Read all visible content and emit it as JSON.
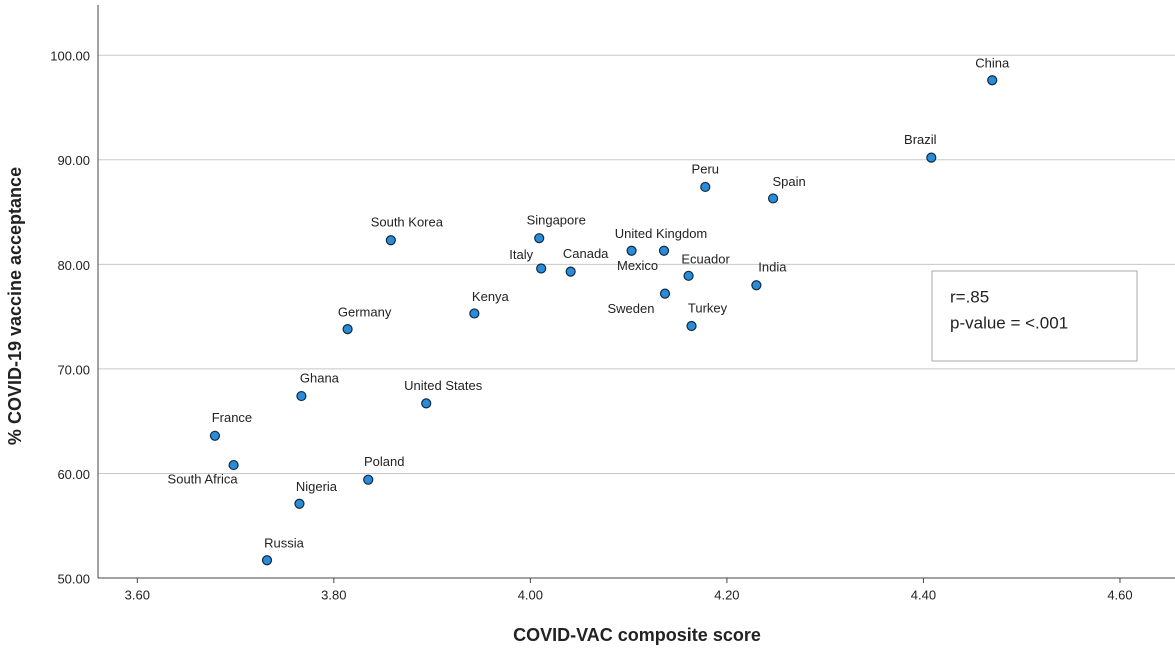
{
  "chart_data": {
    "type": "scatter",
    "x_label": "COVID-VAC composite score",
    "y_label": "% COVID-19 vaccine acceptance",
    "labels": [
      "China",
      "Brazil",
      "Peru",
      "Spain",
      "South Korea",
      "Singapore",
      "Mexico",
      "United Kingdom",
      "Italy",
      "Canada",
      "Ecuador",
      "India",
      "Sweden",
      "Turkey",
      "Kenya",
      "Germany",
      "Ghana",
      "United States",
      "France",
      "South Africa",
      "Poland",
      "Nigeria",
      "Russia"
    ],
    "x": [
      4.47,
      4.408,
      4.178,
      4.247,
      3.858,
      4.009,
      4.103,
      4.136,
      4.011,
      4.041,
      4.161,
      4.23,
      4.137,
      4.164,
      3.943,
      3.814,
      3.767,
      3.894,
      3.679,
      3.698,
      3.835,
      3.765,
      3.732
    ],
    "values": [
      97.6,
      90.2,
      87.4,
      86.3,
      82.3,
      82.5,
      81.3,
      81.3,
      79.6,
      79.3,
      78.9,
      78.0,
      77.2,
      74.1,
      75.3,
      73.8,
      67.4,
      66.7,
      63.6,
      60.8,
      59.4,
      57.1,
      51.7
    ],
    "color": "#2a8bd6",
    "xlim": [
      3.56,
      4.656
    ],
    "ylim": [
      50,
      104.8
    ],
    "xticks": [
      {
        "value": 3.6,
        "label": "3.60"
      },
      {
        "value": 3.8,
        "label": "3.80"
      },
      {
        "value": 4.0,
        "label": "4.00"
      },
      {
        "value": 4.2,
        "label": "4.20"
      },
      {
        "value": 4.4,
        "label": "4.40"
      },
      {
        "value": 4.6,
        "label": "4.60"
      }
    ],
    "yticks": [
      {
        "value": 50,
        "label": "50.00"
      },
      {
        "value": 60,
        "label": "60.00"
      },
      {
        "value": 70,
        "label": "70.00"
      },
      {
        "value": 80,
        "label": "80.00"
      },
      {
        "value": 90,
        "label": "90.00"
      },
      {
        "value": 100,
        "label": "100.00"
      }
    ],
    "grid": true,
    "annotations": [
      "r=.85",
      "p-value = <.001"
    ]
  }
}
